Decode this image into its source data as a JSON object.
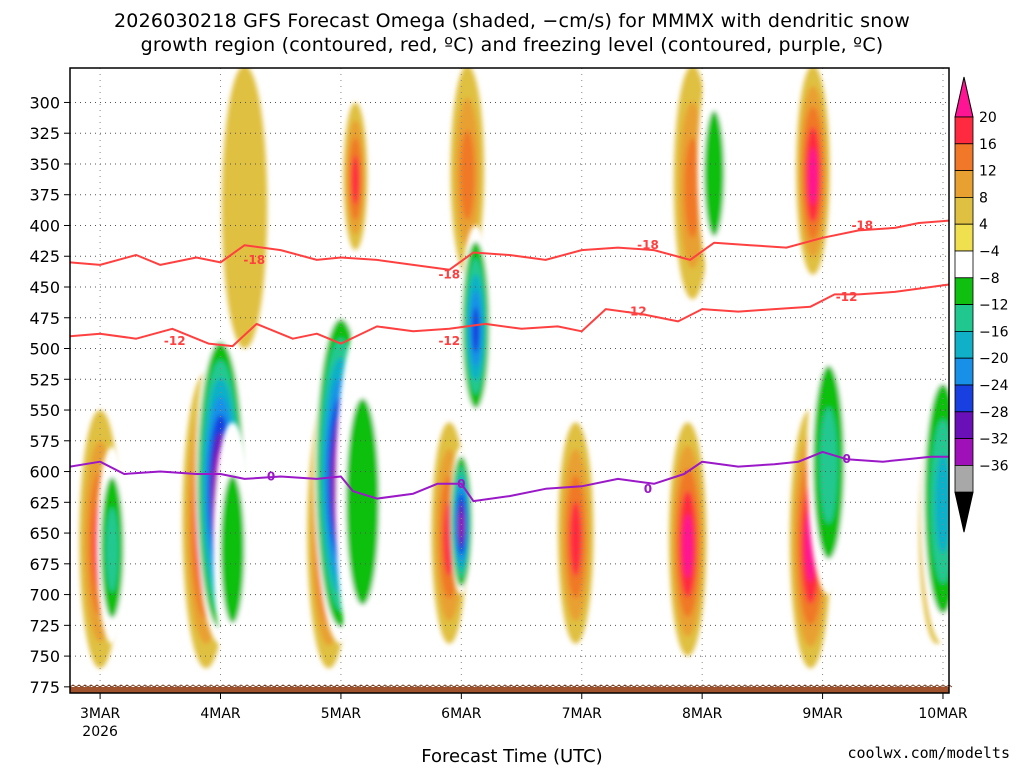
{
  "chart_data": {
    "type": "heatmap",
    "title_line1": "2026030218 GFS Forecast Omega (shaded, −cm/s) for MMMX with dendritic snow",
    "title_line2": "growth region (contoured, red, ºC) and freezing level (contoured, purple, ºC)",
    "xlabel": "Forecast Time (UTC)",
    "credit": "coolwx.com/modelts",
    "ylabel": "",
    "y_ticks": [
      300,
      325,
      350,
      375,
      400,
      425,
      450,
      475,
      500,
      525,
      550,
      575,
      600,
      625,
      650,
      675,
      700,
      725,
      750,
      775
    ],
    "ylim": [
      780,
      272
    ],
    "x_ticks": [
      "3MAR",
      "4MAR",
      "5MAR",
      "6MAR",
      "7MAR",
      "8MAR",
      "9MAR",
      "10MAR"
    ],
    "x_year": "2026",
    "xlim_days": [
      2.75,
      10.05
    ],
    "colorbar": {
      "labels": [
        "20",
        "16",
        "12",
        "8",
        "4",
        "−4",
        "−8",
        "−12",
        "−16",
        "−20",
        "−24",
        "−28",
        "−32",
        "−36"
      ],
      "colors": [
        "#ff2a40",
        "#f07828",
        "#e8a030",
        "#e0c040",
        "#f0e050",
        "#ffffff",
        "#10c010",
        "#20c890",
        "#10b0c8",
        "#1890e8",
        "#1840e0",
        "#6a10b8",
        "#a010b8",
        "#a8a8a8"
      ],
      "over_color": "#ff1493",
      "under_color": "#000000"
    },
    "omega_blobs": [
      {
        "day": 3.0,
        "p_top": 550,
        "p_bot": 760,
        "value": 20
      },
      {
        "day": 3.1,
        "p_top": 580,
        "p_bot": 740,
        "value": -14
      },
      {
        "day": 3.88,
        "p_top": 520,
        "p_bot": 760,
        "value": 22
      },
      {
        "day": 4.0,
        "p_top": 480,
        "p_bot": 740,
        "value": -40
      },
      {
        "day": 4.1,
        "p_top": 560,
        "p_bot": 760,
        "value": -10
      },
      {
        "day": 4.2,
        "p_top": 270,
        "p_bot": 500,
        "value": 6
      },
      {
        "day": 4.9,
        "p_top": 540,
        "p_bot": 760,
        "value": 22
      },
      {
        "day": 5.0,
        "p_top": 460,
        "p_bot": 740,
        "value": -40
      },
      {
        "day": 5.12,
        "p_top": 300,
        "p_bot": 420,
        "value": 20
      },
      {
        "day": 5.18,
        "p_top": 480,
        "p_bot": 760,
        "value": -10
      },
      {
        "day": 5.9,
        "p_top": 560,
        "p_bot": 740,
        "value": 20
      },
      {
        "day": 6.0,
        "p_top": 580,
        "p_bot": 700,
        "value": -36
      },
      {
        "day": 6.05,
        "p_top": 270,
        "p_bot": 440,
        "value": 16
      },
      {
        "day": 6.12,
        "p_top": 400,
        "p_bot": 560,
        "value": -28
      },
      {
        "day": 6.95,
        "p_top": 560,
        "p_bot": 740,
        "value": 18
      },
      {
        "day": 7.05,
        "p_top": 270,
        "p_bot": 480,
        "value": -8
      },
      {
        "day": 7.88,
        "p_top": 560,
        "p_bot": 750,
        "value": 22
      },
      {
        "day": 7.92,
        "p_top": 270,
        "p_bot": 460,
        "value": 16
      },
      {
        "day": 8.1,
        "p_top": 270,
        "p_bot": 440,
        "value": -12
      },
      {
        "day": 8.9,
        "p_top": 550,
        "p_bot": 760,
        "value": 22
      },
      {
        "day": 8.92,
        "p_top": 270,
        "p_bot": 440,
        "value": 22
      },
      {
        "day": 9.05,
        "p_top": 480,
        "p_bot": 700,
        "value": -14
      },
      {
        "day": 9.95,
        "p_top": 560,
        "p_bot": 740,
        "value": 18
      },
      {
        "day": 10.0,
        "p_top": 500,
        "p_bot": 740,
        "value": -20
      }
    ],
    "series": [
      {
        "name": "-18 °C isotherm",
        "color": "#ff4040",
        "x": [
          2.75,
          3.0,
          3.3,
          3.5,
          3.8,
          4.0,
          4.2,
          4.5,
          4.8,
          5.0,
          5.3,
          5.6,
          5.9,
          6.1,
          6.4,
          6.7,
          7.0,
          7.3,
          7.6,
          7.9,
          8.1,
          8.4,
          8.7,
          9.0,
          9.3,
          9.6,
          9.8,
          10.05
        ],
        "y": [
          430,
          432,
          424,
          432,
          426,
          430,
          416,
          420,
          428,
          426,
          428,
          432,
          436,
          422,
          424,
          428,
          420,
          418,
          420,
          428,
          414,
          416,
          418,
          410,
          404,
          402,
          398,
          396
        ]
      },
      {
        "name": "-12 °C isotherm",
        "color": "#ff4040",
        "x": [
          2.75,
          3.0,
          3.3,
          3.6,
          3.9,
          4.1,
          4.3,
          4.6,
          4.8,
          5.0,
          5.3,
          5.6,
          5.9,
          6.2,
          6.5,
          6.8,
          7.0,
          7.2,
          7.5,
          7.8,
          8.0,
          8.3,
          8.6,
          8.9,
          9.1,
          9.3,
          9.6,
          9.9,
          10.05
        ],
        "y": [
          490,
          488,
          492,
          484,
          496,
          498,
          480,
          492,
          488,
          496,
          482,
          486,
          484,
          480,
          484,
          482,
          486,
          468,
          472,
          478,
          468,
          470,
          468,
          466,
          456,
          456,
          454,
          450,
          448
        ]
      },
      {
        "name": "0 °C freezing level",
        "color": "#9a18c8",
        "x": [
          2.75,
          3.0,
          3.2,
          3.5,
          3.8,
          4.0,
          4.2,
          4.5,
          4.8,
          5.0,
          5.1,
          5.3,
          5.6,
          5.8,
          6.0,
          6.1,
          6.4,
          6.7,
          7.0,
          7.3,
          7.6,
          7.85,
          8.0,
          8.3,
          8.6,
          8.8,
          9.0,
          9.2,
          9.5,
          9.7,
          9.9,
          10.05
        ],
        "y": [
          596,
          592,
          602,
          600,
          602,
          602,
          606,
          604,
          606,
          604,
          616,
          622,
          618,
          610,
          610,
          624,
          620,
          614,
          612,
          606,
          610,
          602,
          592,
          596,
          594,
          592,
          584,
          590,
          592,
          590,
          588,
          588
        ]
      }
    ],
    "contour_labels": [
      {
        "text": "-18",
        "day": 4.28,
        "p": 428
      },
      {
        "text": "-18",
        "day": 5.9,
        "p": 440
      },
      {
        "text": "-18",
        "day": 7.55,
        "p": 416
      },
      {
        "text": "-18",
        "day": 9.33,
        "p": 400
      },
      {
        "text": "-12",
        "day": 3.62,
        "p": 494
      },
      {
        "text": "-12",
        "day": 5.9,
        "p": 494
      },
      {
        "text": "-12",
        "day": 7.45,
        "p": 470
      },
      {
        "text": "-12",
        "day": 9.2,
        "p": 458
      },
      {
        "text": "0",
        "day": 4.42,
        "p": 604
      },
      {
        "text": "0",
        "day": 6.0,
        "p": 610
      },
      {
        "text": "0",
        "day": 7.55,
        "p": 614
      },
      {
        "text": "0",
        "day": 9.2,
        "p": 590
      }
    ]
  }
}
